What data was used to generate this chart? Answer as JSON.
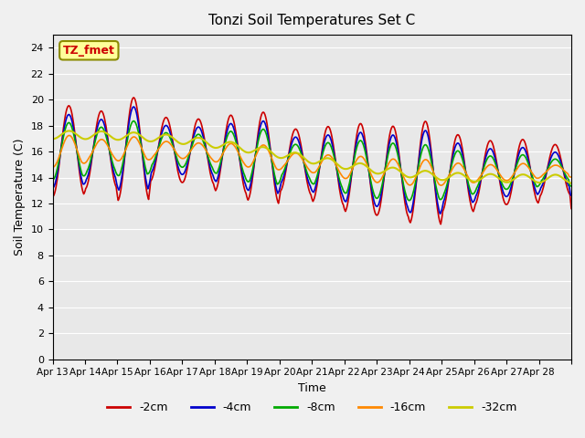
{
  "title": "Tonzi Soil Temperatures Set C",
  "xlabel": "Time",
  "ylabel": "Soil Temperature (C)",
  "ylim": [
    0,
    25
  ],
  "yticks": [
    0,
    2,
    4,
    6,
    8,
    10,
    12,
    14,
    16,
    18,
    20,
    22,
    24
  ],
  "bg_color": "#e8e8e8",
  "plot_bg_color": "#e8e8e8",
  "legend_label": "TZ_fmet",
  "legend_box_color": "#ffff99",
  "legend_box_edge": "#8b8b00",
  "series": [
    {
      "label": "-2cm",
      "color": "#cc0000",
      "lw": 1.2
    },
    {
      "label": "-4cm",
      "color": "#0000cc",
      "lw": 1.2
    },
    {
      "label": "-8cm",
      "color": "#00aa00",
      "lw": 1.2
    },
    {
      "label": "-16cm",
      "color": "#ff8800",
      "lw": 1.2
    },
    {
      "label": "-32cm",
      "color": "#cccc00",
      "lw": 1.5
    }
  ],
  "x_tick_labels": [
    "Apr 13",
    "Apr 14",
    "Apr 15",
    "Apr 16",
    "Apr 17",
    "Apr 18",
    "Apr 19",
    "Apr 20",
    "Apr 21",
    "Apr 22",
    "Apr 23",
    "Apr 24",
    "Apr 25",
    "Apr 26",
    "Apr 27",
    "Apr 28"
  ],
  "n_days": 16,
  "points_per_day": 48
}
